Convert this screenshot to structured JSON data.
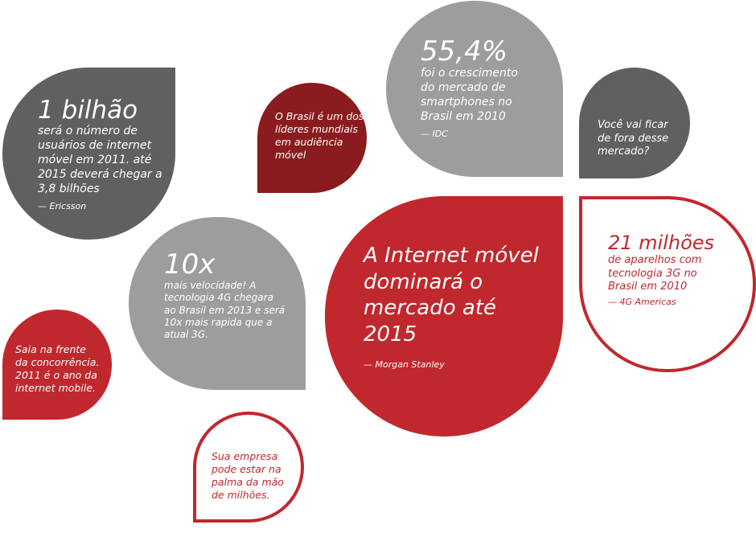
{
  "bubbles": {
    "bilhao": {
      "headline": "1 bilhão",
      "lines": [
        "será o número de",
        "usuários de internet",
        "móvel em 2011. até",
        "2015 deverá chegar a",
        "3,8 bilhões"
      ],
      "source": "— Ericsson"
    },
    "lideres": {
      "lines": [
        "O Brasil é um dos",
        "líderes mundiais",
        "em audiência",
        "móvel"
      ]
    },
    "smartphones": {
      "headline": "55,4%",
      "lines": [
        "foi o crescimento",
        "do mercado de",
        "smartphones no",
        "Brasil em 2010"
      ],
      "source": "— IDC"
    },
    "fora": {
      "lines": [
        "Você vai ficar",
        "de fora desse",
        "mercado?"
      ]
    },
    "velocidade": {
      "headline": "10x",
      "lines": [
        "mais velocidade! A",
        "tecnologia 4G chegara",
        "ao Brasil em 2013 e será",
        "10x mais rapida que a",
        "atual 3G."
      ]
    },
    "internet_movel": {
      "headline_lines": [
        "A Internet móvel",
        "dominará o",
        "mercado até",
        "2015"
      ],
      "source": "— Morgan Stanley"
    },
    "milhoes": {
      "headline": "21 milhões",
      "lines": [
        "de aparelhos com",
        "tecnologia 3G no",
        "Brasil em 2010"
      ],
      "source": "— 4G Americas"
    },
    "frente": {
      "lines": [
        "Saia na frente",
        "da concorrência.",
        "2011 é o ano da",
        "internet mobile."
      ]
    },
    "empresa": {
      "lines": [
        "Sua empresa",
        "pode estar na",
        "palma da mão",
        "de milhões."
      ]
    }
  },
  "colors": {
    "dark_gray": "#606060",
    "light_gray": "#9d9d9d",
    "maroon": "#8a1b1e",
    "red": "#c1282d",
    "white": "#ffffff"
  }
}
